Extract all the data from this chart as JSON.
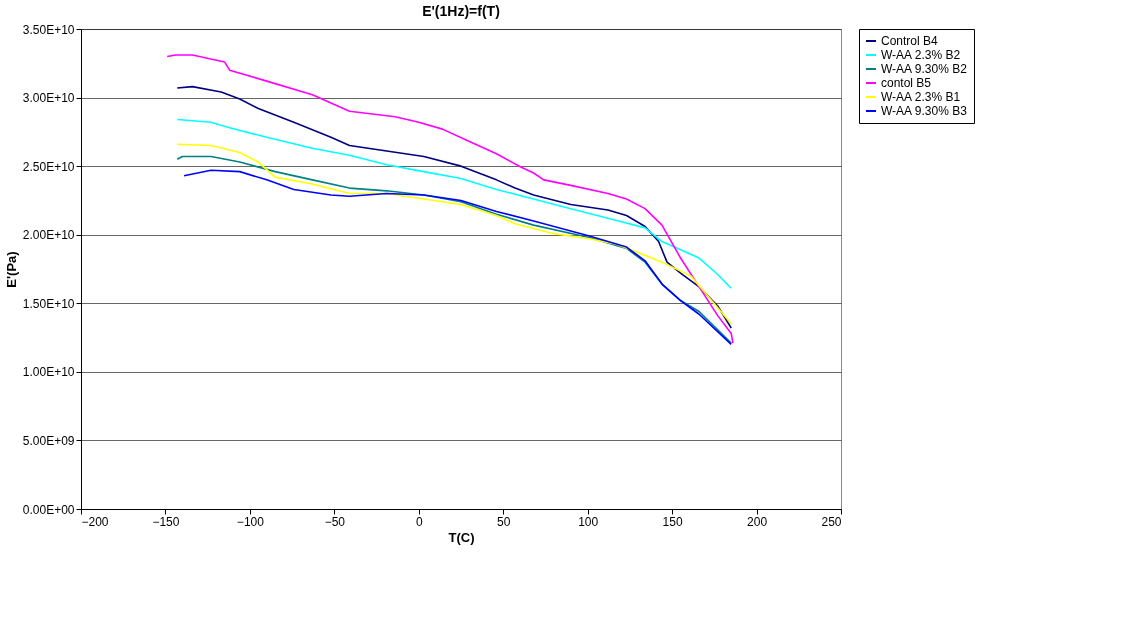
{
  "chart_data": {
    "type": "line",
    "title": "E'(1Hz)=f(T)",
    "xlabel": "T(C)",
    "ylabel": "E'(Pa)",
    "xlim": [
      -200,
      250
    ],
    "xticks": [
      -200,
      -150,
      -100,
      -50,
      0,
      50,
      100,
      150,
      200,
      250
    ],
    "ylim": [
      0,
      35000000000
    ],
    "yticks": [
      {
        "value": 0,
        "label": "0.00E+00"
      },
      {
        "value": 5000000000,
        "label": "5.00E+09"
      },
      {
        "value": 10000000000,
        "label": "1.00E+10"
      },
      {
        "value": 15000000000,
        "label": "1.50E+10"
      },
      {
        "value": 20000000000,
        "label": "2.00E+10"
      },
      {
        "value": 25000000000,
        "label": "2.50E+10"
      },
      {
        "value": 30000000000,
        "label": "3.00E+10"
      },
      {
        "value": 35000000000,
        "label": "3.50E+10"
      }
    ],
    "grid": "y",
    "legend": "right",
    "marker": "none",
    "line_style": "solid",
    "series": [
      {
        "name": "Control B4",
        "color": "#000080",
        "x": [
          -143,
          -134,
          -117,
          -106,
          -95,
          -74,
          -52,
          -41,
          -19,
          3,
          25,
          46,
          57,
          68,
          90,
          112,
          123,
          134,
          142,
          147,
          155,
          166,
          177,
          185
        ],
        "values": [
          30700000000.0,
          30800000000.0,
          30400000000.0,
          29900000000.0,
          29200000000.0,
          28200000000.0,
          27100000000.0,
          26500000000.0,
          26100000000.0,
          25700000000.0,
          25000000000.0,
          24000000000.0,
          23400000000.0,
          22900000000.0,
          22200000000.0,
          21800000000.0,
          21400000000.0,
          20600000000.0,
          19500000000.0,
          18000000000.0,
          17200000000.0,
          16200000000.0,
          14800000000.0,
          13200000000.0
        ]
      },
      {
        "name": "W-AA 2.3% B2",
        "color": "#00ffff",
        "x": [
          -143,
          -123,
          -112,
          -90,
          -63,
          -41,
          -19,
          3,
          25,
          46,
          68,
          90,
          112,
          134,
          144,
          155,
          166,
          177,
          185
        ],
        "values": [
          28400000000.0,
          28200000000.0,
          27800000000.0,
          27100000000.0,
          26300000000.0,
          25800000000.0,
          25100000000.0,
          24600000000.0,
          24100000000.0,
          23300000000.0,
          22600000000.0,
          21900000000.0,
          21200000000.0,
          20500000000.0,
          19500000000.0,
          18900000000.0,
          18300000000.0,
          17100000000.0,
          16100000000.0
        ]
      },
      {
        "name": "W-AA 9.30% B2",
        "color": "#008080",
        "x": [
          -143,
          -140,
          -123,
          -106,
          -85,
          -63,
          -41,
          -19,
          3,
          25,
          46,
          68,
          101,
          123,
          134,
          144,
          155,
          166,
          185
        ],
        "values": [
          25500000000.0,
          25700000000.0,
          25700000000.0,
          25300000000.0,
          24600000000.0,
          24000000000.0,
          23400000000.0,
          23200000000.0,
          22900000000.0,
          22400000000.0,
          21500000000.0,
          20700000000.0,
          19800000000.0,
          19000000000.0,
          18000000000.0,
          16400000000.0,
          15200000000.0,
          14400000000.0,
          12100000000.0
        ]
      },
      {
        "name": "contol B5",
        "color": "#ff00ff",
        "x": [
          -149,
          -144,
          -134,
          -115,
          -112,
          -90,
          -63,
          -41,
          -14,
          0,
          14,
          30,
          46,
          61,
          68,
          74,
          90,
          112,
          123,
          134,
          144,
          155,
          166,
          177,
          185,
          186
        ],
        "values": [
          33000000000.0,
          33100000000.0,
          33100000000.0,
          32600000000.0,
          32000000000.0,
          31200000000.0,
          30200000000.0,
          29000000000.0,
          28600000000.0,
          28200000000.0,
          27700000000.0,
          26800000000.0,
          25900000000.0,
          24900000000.0,
          24500000000.0,
          24000000000.0,
          23600000000.0,
          23000000000.0,
          22600000000.0,
          21900000000.0,
          20700000000.0,
          18300000000.0,
          16200000000.0,
          14100000000.0,
          12800000000.0,
          12100000000.0
        ]
      },
      {
        "name": "W-AA 2.3% B1",
        "color": "#ffff00",
        "x": [
          -143,
          -123,
          -106,
          -95,
          -85,
          -63,
          -41,
          -19,
          3,
          25,
          46,
          57,
          79,
          101,
          117,
          128,
          144,
          161,
          172,
          185
        ],
        "values": [
          26600000000.0,
          26500000000.0,
          26000000000.0,
          25300000000.0,
          24200000000.0,
          23700000000.0,
          23000000000.0,
          23000000000.0,
          22600000000.0,
          22200000000.0,
          21400000000.0,
          20800000000.0,
          20100000000.0,
          19700000000.0,
          19300000000.0,
          18800000000.0,
          18000000000.0,
          17000000000.0,
          15400000000.0,
          13500000000.0
        ]
      },
      {
        "name": "W-AA 9.30% B3",
        "color": "#0000ff",
        "x": [
          -139,
          -123,
          -106,
          -90,
          -74,
          -52,
          -41,
          -19,
          3,
          25,
          46,
          68,
          101,
          123,
          134,
          144,
          155,
          166,
          185
        ],
        "values": [
          24300000000.0,
          24700000000.0,
          24600000000.0,
          24000000000.0,
          23300000000.0,
          22900000000.0,
          22800000000.0,
          23000000000.0,
          22900000000.0,
          22500000000.0,
          21700000000.0,
          21000000000.0,
          19900000000.0,
          19100000000.0,
          18100000000.0,
          16400000000.0,
          15200000000.0,
          14200000000.0,
          12000000000.0
        ]
      }
    ]
  }
}
